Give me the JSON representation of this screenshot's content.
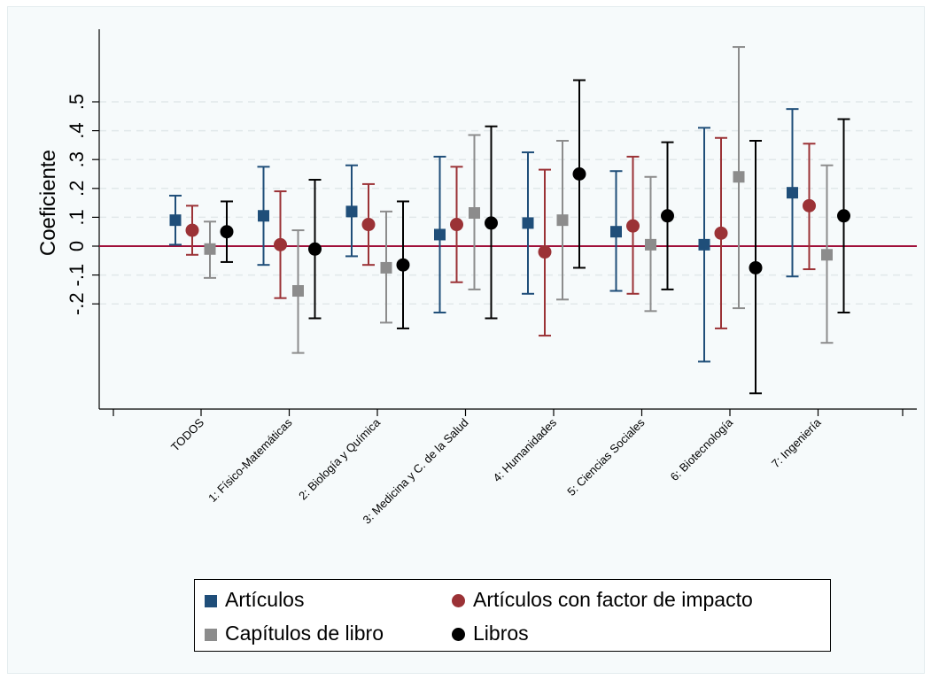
{
  "chart_data": {
    "type": "scatter",
    "subtype": "coefficient plot with confidence intervals",
    "ylabel": "Coeficiente",
    "yticks": [
      "-.2",
      "-.1",
      "0",
      ".1",
      ".2",
      ".3",
      ".4",
      ".5"
    ],
    "ylim": [
      -0.56,
      0.72
    ],
    "reference_line": 0,
    "grid": true,
    "categories": [
      "TODOS",
      "1: Físico-Matemáticas",
      "2: Biología y Química",
      "3: Medicina y C. de la Salud",
      "4: Humanidades",
      "5: Ciencias Sociales",
      "6: Biotecnología",
      "7: Ingeniería"
    ],
    "series": [
      {
        "name": "Artículos",
        "marker": "square",
        "color": "#1f4e79",
        "estimates": [
          0.09,
          0.105,
          0.12,
          0.04,
          0.08,
          0.05,
          0.005,
          0.185
        ],
        "lower": [
          0.005,
          -0.065,
          -0.035,
          -0.23,
          -0.165,
          -0.155,
          -0.4,
          -0.105
        ],
        "upper": [
          0.175,
          0.275,
          0.28,
          0.31,
          0.325,
          0.26,
          0.41,
          0.475
        ]
      },
      {
        "name": "Artículos con factor de impacto",
        "marker": "circle",
        "color": "#9b3236",
        "estimates": [
          0.055,
          0.005,
          0.075,
          0.075,
          -0.02,
          0.07,
          0.045,
          0.14
        ],
        "lower": [
          -0.03,
          -0.18,
          -0.065,
          -0.125,
          -0.31,
          -0.165,
          -0.285,
          -0.08
        ],
        "upper": [
          0.14,
          0.19,
          0.215,
          0.275,
          0.265,
          0.31,
          0.375,
          0.355
        ]
      },
      {
        "name": "Capítulos de libro",
        "marker": "square",
        "color": "#8c8c8c",
        "estimates": [
          -0.01,
          -0.155,
          -0.075,
          0.115,
          0.09,
          0.005,
          0.24,
          -0.03
        ],
        "lower": [
          -0.11,
          -0.37,
          -0.265,
          -0.15,
          -0.185,
          -0.225,
          -0.215,
          -0.335
        ],
        "upper": [
          0.085,
          0.055,
          0.12,
          0.385,
          0.365,
          0.24,
          0.69,
          0.28
        ]
      },
      {
        "name": "Libros",
        "marker": "circle",
        "color": "#000000",
        "estimates": [
          0.05,
          -0.01,
          -0.065,
          0.08,
          0.25,
          0.105,
          -0.075,
          0.105
        ],
        "lower": [
          -0.055,
          -0.25,
          -0.285,
          -0.25,
          -0.075,
          -0.15,
          -0.51,
          -0.23
        ],
        "upper": [
          0.155,
          0.23,
          0.155,
          0.415,
          0.575,
          0.36,
          0.365,
          0.44
        ]
      }
    ],
    "legend": {
      "position": "bottom",
      "columns": 2,
      "items": [
        {
          "label": "Artículos",
          "marker": "square",
          "color": "#1f4e79"
        },
        {
          "label": "Artículos con factor de impacto",
          "marker": "circle",
          "color": "#9b3236"
        },
        {
          "label": "Capítulos de libro",
          "marker": "square",
          "color": "#8c8c8c"
        },
        {
          "label": "Libros",
          "marker": "circle",
          "color": "#000000"
        }
      ]
    }
  }
}
